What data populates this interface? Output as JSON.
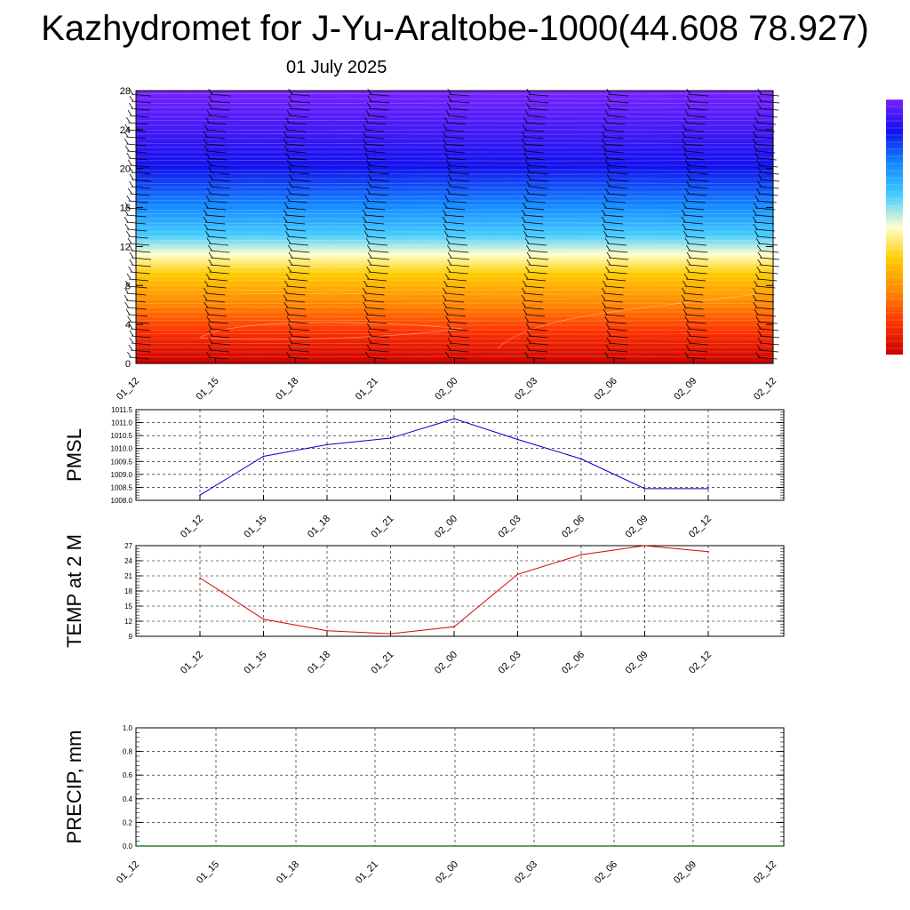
{
  "header": {
    "title": "Kazhydromet for J-Yu-Araltobe-1000(44.608 78.927)",
    "subtitle": "01 July 2025"
  },
  "chart_data": [
    {
      "type": "heatmap",
      "panel": "cross-section",
      "x_ticks": [
        "01_12",
        "01_15",
        "01_18",
        "01_21",
        "02_00",
        "02_03",
        "02_06",
        "02_09",
        "02_12"
      ],
      "y_ticks": [
        "0",
        "4",
        "8",
        "12",
        "16",
        "20",
        "24",
        "28"
      ],
      "ylim": [
        0,
        28
      ],
      "colormap": [
        "#cc0000",
        "#ff3300",
        "#ff8800",
        "#ffcc00",
        "#ffffcc",
        "#44ccff",
        "#1188ff",
        "#1111ee",
        "#7722ff"
      ],
      "colorbar": true,
      "wind_barbs": true
    },
    {
      "type": "line",
      "panel": "pmsl",
      "ylabel": "PMSL",
      "categories": [
        "01_12",
        "01_15",
        "01_18",
        "01_21",
        "02_00",
        "02_03",
        "02_06",
        "02_09",
        "02_12"
      ],
      "values": [
        1008.2,
        1009.7,
        1010.15,
        1010.4,
        1011.15,
        1010.35,
        1009.6,
        1008.45,
        1008.45
      ],
      "ylim": [
        1008.0,
        1011.5
      ],
      "y_ticks": [
        "1008.0",
        "1008.5",
        "1009.0",
        "1009.5",
        "1010.0",
        "1010.5",
        "1011.0",
        "1011.5"
      ],
      "color": "#0000cc",
      "grid": true
    },
    {
      "type": "line",
      "panel": "temp",
      "ylabel": "TEMP at 2 M",
      "categories": [
        "01_12",
        "01_15",
        "01_18",
        "01_21",
        "02_00",
        "02_03",
        "02_06",
        "02_09",
        "02_12"
      ],
      "values": [
        20.6,
        12.4,
        10.1,
        9.5,
        10.9,
        21.3,
        25.2,
        27.0,
        25.8
      ],
      "ylim": [
        9,
        27
      ],
      "y_ticks": [
        "9",
        "12",
        "15",
        "18",
        "21",
        "24",
        "27"
      ],
      "color": "#dd0000",
      "grid": true
    },
    {
      "type": "line",
      "panel": "precip",
      "ylabel": "PRECIP, mm",
      "categories": [
        "01_12",
        "01_15",
        "01_18",
        "01_21",
        "02_00",
        "02_03",
        "02_06",
        "02_09",
        "02_12"
      ],
      "values": [
        0,
        0,
        0,
        0,
        0,
        0,
        0,
        0,
        0
      ],
      "ylim": [
        0,
        1
      ],
      "y_ticks": [
        "0.0",
        "0.2",
        "0.4",
        "0.6",
        "0.8",
        "1.0"
      ],
      "color": "#006600",
      "grid": true
    }
  ]
}
